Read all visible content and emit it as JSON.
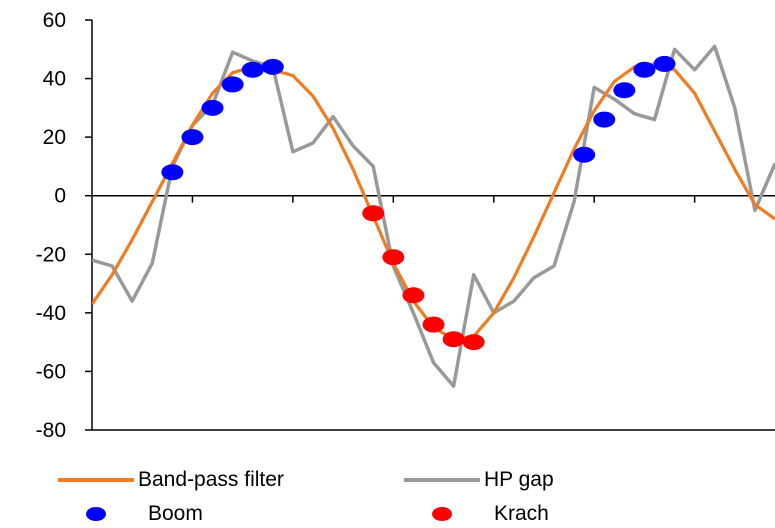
{
  "chart_data": {
    "type": "line",
    "title": "",
    "xlabel": "",
    "ylabel": "",
    "ylim": [
      -80,
      60
    ],
    "yticks": [
      "60",
      "40",
      "20",
      "0",
      "-20",
      "-40",
      "-60",
      "-80"
    ],
    "xlim": [
      0,
      68
    ],
    "grid": false,
    "legend_position": "bottom",
    "series": [
      {
        "name": "Band-pass filter",
        "kind": "line",
        "color": "#f07c22",
        "x": [
          0,
          2,
          4,
          6,
          8,
          10,
          12,
          14,
          16,
          18,
          20,
          22,
          24,
          26,
          28,
          30,
          32,
          34,
          36,
          38,
          40,
          42,
          44,
          46,
          48,
          50,
          52,
          54,
          56,
          58,
          60,
          62,
          64,
          66,
          68
        ],
        "y": [
          -37,
          -27,
          -15,
          -2,
          11,
          24,
          35,
          42,
          44,
          43,
          41,
          34,
          23,
          9,
          -7,
          -23,
          -36,
          -45,
          -49,
          -48,
          -40,
          -28,
          -14,
          1,
          16,
          29,
          39,
          44,
          45,
          43,
          35,
          22,
          9,
          -3,
          -8
        ]
      },
      {
        "name": "HP gap",
        "kind": "line",
        "color": "#999999",
        "x": [
          0,
          2,
          4,
          6,
          8,
          10,
          12,
          14,
          16,
          18,
          20,
          22,
          24,
          26,
          28,
          30,
          32,
          34,
          36,
          38,
          40,
          42,
          44,
          46,
          48,
          50,
          52,
          54,
          56,
          58,
          60,
          62,
          64,
          66,
          68
        ],
        "y": [
          -22,
          -24,
          -36,
          -23,
          10,
          24,
          31,
          49,
          46,
          44,
          15,
          18,
          27,
          17,
          10,
          -24,
          -40,
          -57,
          -65,
          -27,
          -40,
          -36,
          -28,
          -24,
          -2,
          37,
          33,
          28,
          26,
          50,
          43,
          51,
          30,
          -5,
          11
        ]
      },
      {
        "name": "Boom",
        "kind": "points",
        "color": "#0000ff",
        "x": [
          8,
          10,
          12,
          14,
          16,
          18,
          49,
          51,
          53,
          55,
          57
        ],
        "y": [
          8,
          20,
          30,
          38,
          43,
          44,
          14,
          26,
          36,
          43,
          45
        ]
      },
      {
        "name": "Krach",
        "kind": "points",
        "color": "#ff0000",
        "x": [
          28,
          30,
          32,
          34,
          36,
          38
        ],
        "y": [
          -6,
          -21,
          -34,
          -44,
          -49,
          -50
        ]
      }
    ]
  },
  "legend": {
    "band_pass": "Band-pass filter",
    "hp_gap": "HP gap",
    "boom": "Boom",
    "krach": "Krach"
  },
  "colors": {
    "band_pass": "#f07c22",
    "hp_gap": "#999999",
    "boom": "#0000ff",
    "krach": "#ff0000",
    "axis": "#000000"
  }
}
